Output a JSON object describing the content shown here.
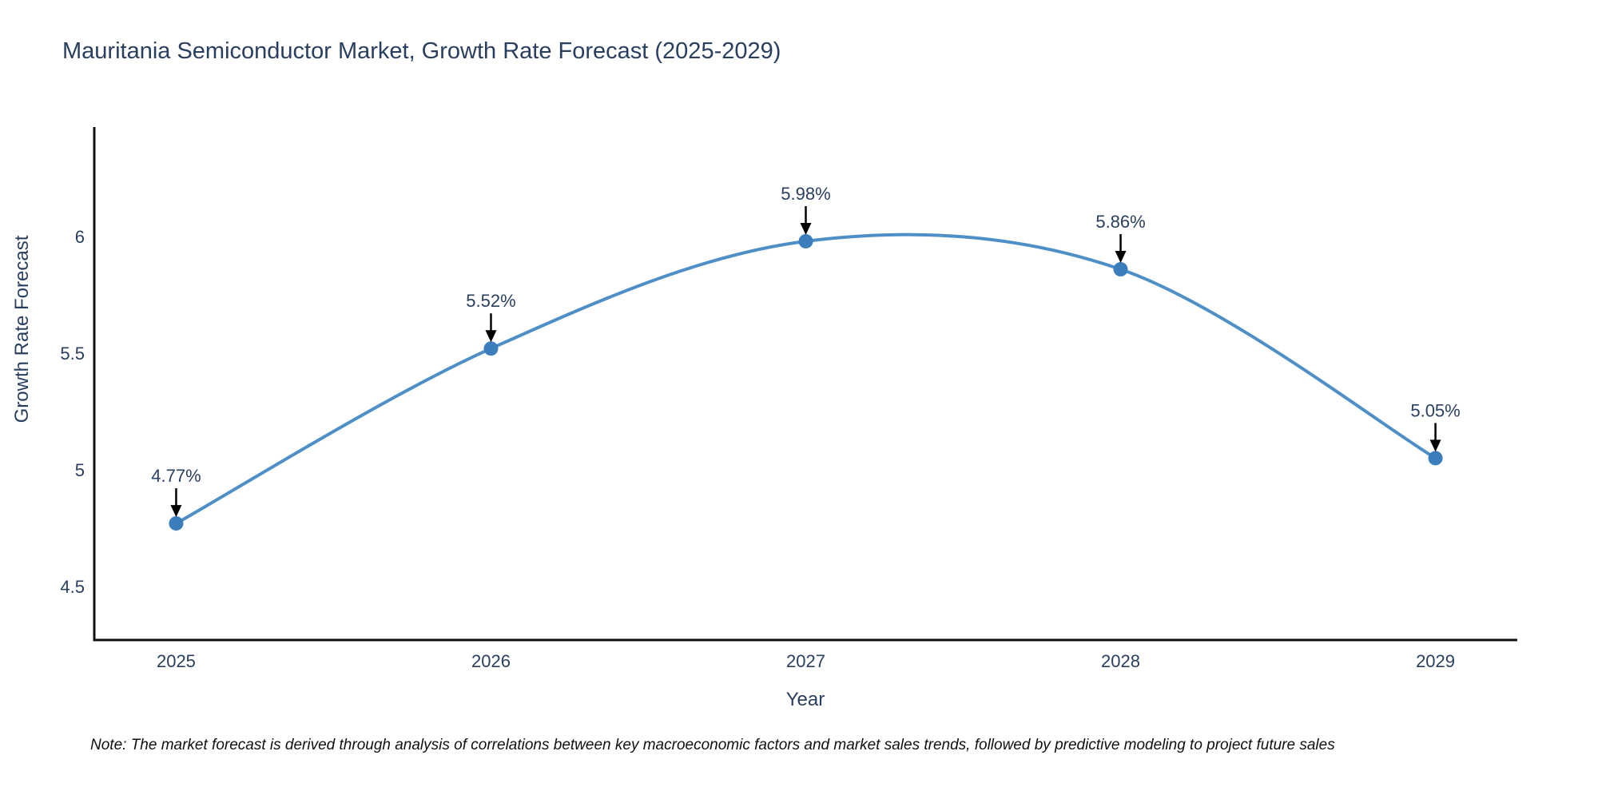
{
  "title": "Mauritania Semiconductor Market, Growth Rate Forecast (2025-2029)",
  "note": "Note: The market forecast is derived through analysis of correlations between key macroeconomic factors and market sales trends, followed by predictive modeling to project future sales",
  "chart_data": {
    "type": "line",
    "title": "Mauritania Semiconductor Market, Growth Rate Forecast (2025-2029)",
    "x": [
      2025,
      2026,
      2027,
      2028,
      2029
    ],
    "values": [
      4.77,
      5.52,
      5.98,
      5.86,
      5.05
    ],
    "point_labels": [
      "4.77%",
      "5.52%",
      "5.98%",
      "5.86%",
      "5.05%"
    ],
    "xlabel": "Year",
    "ylabel": "Growth Rate Forecast",
    "xtick_labels": [
      "2025",
      "2026",
      "2027",
      "2028",
      "2029"
    ],
    "yticks": [
      4.5,
      5,
      5.5,
      6
    ],
    "ytick_labels": [
      "4.5",
      "5",
      "5.5",
      "6"
    ],
    "xlim": [
      2024.74,
      2029.26
    ],
    "ylim": [
      4.27,
      6.47
    ],
    "grid": false,
    "legend": "none",
    "line_style": "spline",
    "marker": "circle",
    "colors": {
      "line": "#4E8FC7",
      "marker": "#3B7EBB",
      "axis": "#111111",
      "text": "#2a3f5f",
      "annotation_arrow": "#000000"
    }
  }
}
